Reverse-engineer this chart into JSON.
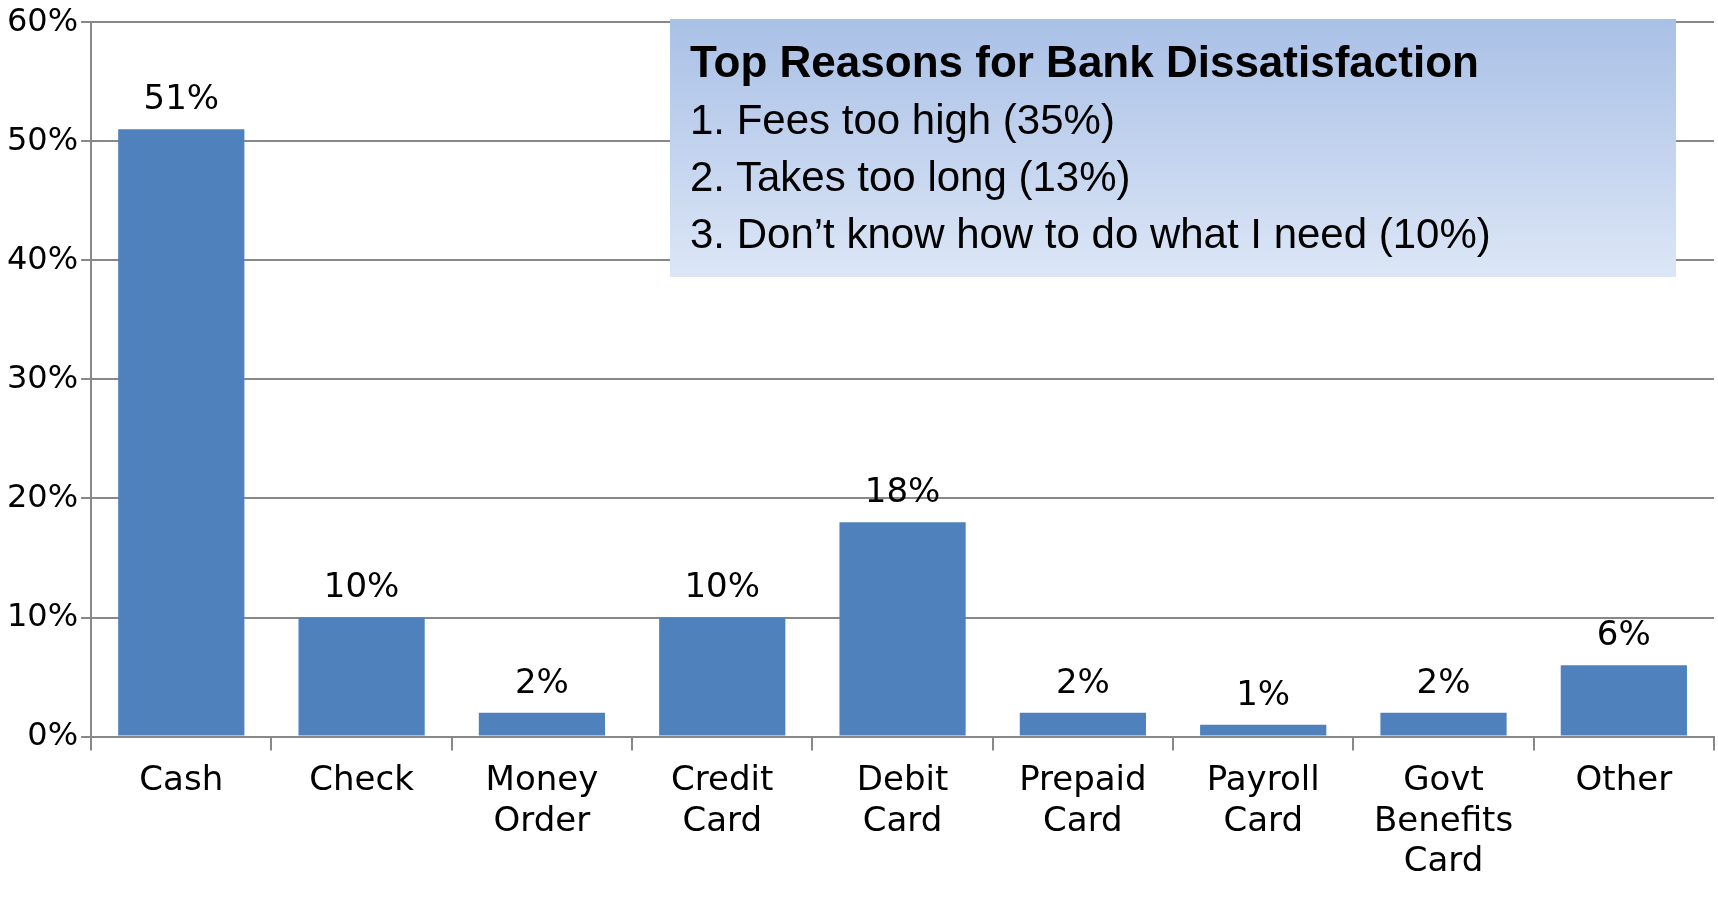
{
  "chart_data": {
    "type": "bar",
    "categories": [
      "Cash",
      "Check",
      "Money Order",
      "Credit Card",
      "Debit Card",
      "Prepaid Card",
      "Payroll Card",
      "Govt Benefits Card",
      "Other"
    ],
    "values": [
      51,
      10,
      2,
      10,
      18,
      2,
      1,
      2,
      6
    ],
    "color": "#4f81bd",
    "ylim": [
      0,
      60
    ],
    "yticks": [
      {
        "value": 0,
        "label": "0%"
      },
      {
        "value": 10,
        "label": "10%"
      },
      {
        "value": 20,
        "label": "20%"
      },
      {
        "value": 30,
        "label": "30%"
      },
      {
        "value": 40,
        "label": "40%"
      },
      {
        "value": 50,
        "label": "50%"
      },
      {
        "value": 60,
        "label": "60%"
      }
    ],
    "value_labels": [
      "51%",
      "10%",
      "2%",
      "10%",
      "18%",
      "2%",
      "1%",
      "2%",
      "6%"
    ],
    "grid": "y",
    "legend": false,
    "annotations": [
      "Top Reasons for Bank Dissatisfaction",
      "1.  Fees too high (35%)",
      "2.  Takes too long (13%)",
      "3.  Don’t know how to do what I need (10%)"
    ]
  }
}
